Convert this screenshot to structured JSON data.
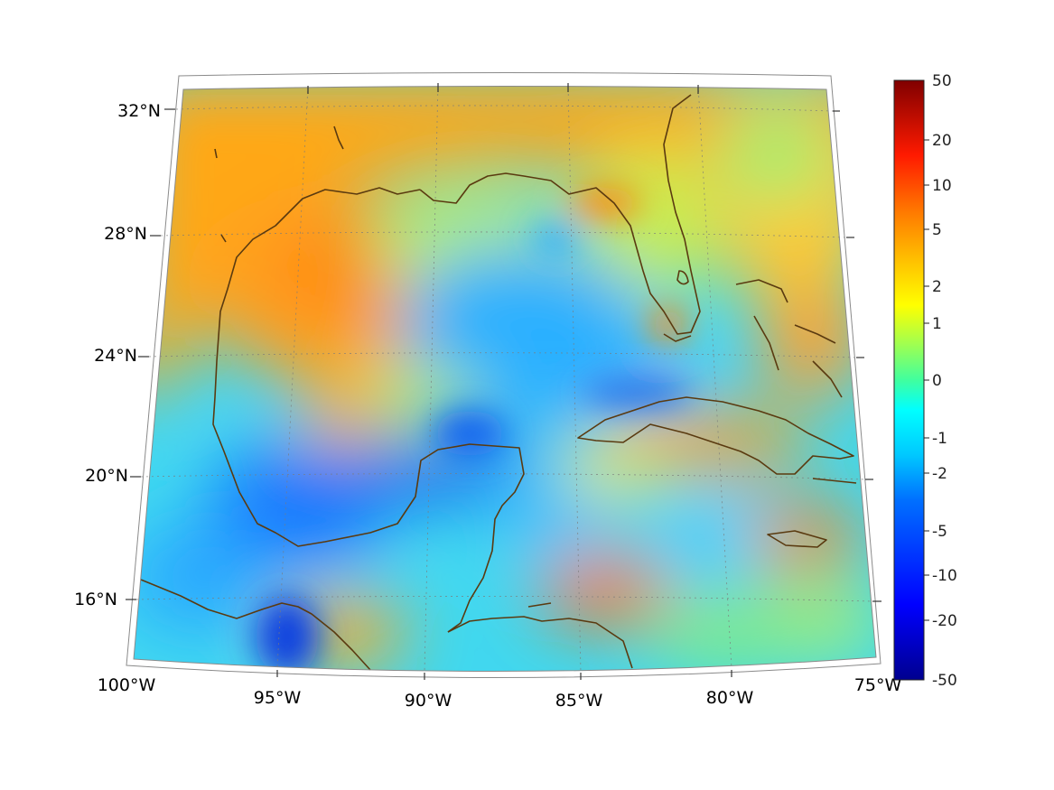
{
  "map": {
    "projection": "conic",
    "lon_range": [
      -100,
      -75
    ],
    "lat_range": [
      14,
      33
    ],
    "lon_labels": [
      "100°W",
      "95°W",
      "90°W",
      "85°W",
      "80°W",
      "75°W"
    ],
    "lat_labels": [
      "32°N",
      "28°N",
      "24°N",
      "20°N",
      "16°N"
    ],
    "coastline_color": "#5a3a10",
    "grid": true
  },
  "colorbar": {
    "colormap": "jet",
    "orientation": "vertical",
    "tick_labels": [
      "50",
      "20",
      "10",
      "5",
      "2",
      "1",
      "0",
      "-1",
      "-2",
      "-5",
      "-10",
      "-20",
      "-50"
    ]
  }
}
